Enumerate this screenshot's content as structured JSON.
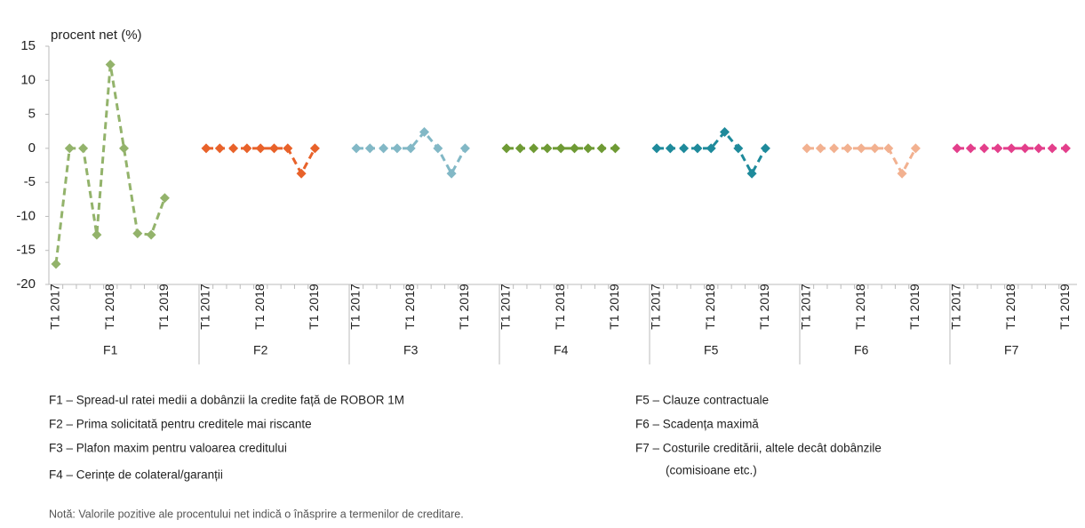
{
  "chart_data": {
    "type": "line",
    "y_label": "procent net (%)",
    "ylim": [
      -20,
      15
    ],
    "yticks": [
      -20,
      -15,
      -10,
      -5,
      0,
      5,
      10,
      15
    ],
    "groups": [
      {
        "name": "F1",
        "color": "#93b36b",
        "categories": [
          "T1 2017",
          null,
          null,
          null,
          "T1 2018",
          null,
          null,
          null,
          "T1 2019"
        ],
        "values": [
          -17,
          0,
          0,
          -12.7,
          12.3,
          0,
          -12.5,
          -12.7,
          -7.3
        ]
      },
      {
        "name": "F2",
        "color": "#e8622a",
        "categories": [
          "T1 2017",
          null,
          null,
          null,
          "T1 2018",
          null,
          null,
          null,
          "T1 2019"
        ],
        "values": [
          0,
          0,
          0,
          0,
          0,
          0,
          0,
          -3.7,
          0
        ]
      },
      {
        "name": "F3",
        "color": "#82b8c6",
        "categories": [
          "T1 2017",
          null,
          null,
          null,
          "T1 2018",
          null,
          null,
          null,
          "T1 2019"
        ],
        "values": [
          0,
          0,
          0,
          0,
          0,
          2.4,
          0,
          -3.7,
          0
        ]
      },
      {
        "name": "F4",
        "color": "#6e9a34",
        "categories": [
          "T1 2017",
          null,
          null,
          null,
          "T1 2018",
          null,
          null,
          null,
          "T1 2019"
        ],
        "values": [
          0,
          0,
          0,
          0,
          0,
          0,
          0,
          0,
          0
        ]
      },
      {
        "name": "F5",
        "color": "#1e8a9b",
        "categories": [
          "T1 2017",
          null,
          null,
          null,
          "T1 2018",
          null,
          null,
          null,
          "T1 2019"
        ],
        "values": [
          0,
          0,
          0,
          0,
          0,
          2.4,
          0,
          -3.7,
          0
        ]
      },
      {
        "name": "F6",
        "color": "#f2b190",
        "categories": [
          "T1 2017",
          null,
          null,
          null,
          "T1 2018",
          null,
          null,
          null,
          "T1 2019"
        ],
        "values": [
          0,
          0,
          0,
          0,
          0,
          0,
          0,
          -3.7,
          0
        ]
      },
      {
        "name": "F7",
        "color": "#e33f8b",
        "categories": [
          "T1 2017",
          null,
          null,
          null,
          "T1 2018",
          null,
          null,
          null,
          "T1 2019"
        ],
        "values": [
          0,
          0,
          0,
          0,
          0,
          0,
          0,
          0,
          0
        ]
      }
    ],
    "legend": [
      [
        "F1 – Spread-ul ratei medii a dobânzii  la credite față de ROBOR 1M"
      ],
      [
        "F2 – Prima solicitată pentru creditele  mai riscante"
      ],
      [
        "F3 – Plafon maxim pentru valoarea creditului"
      ],
      [
        "F4 – Cerințe de colateral/garanții"
      ],
      [
        "F5 – Clauze contractuale"
      ],
      [
        "F6 – Scadența maximă"
      ],
      [
        "F7 – Costurile creditării, altele decât  dobânzile",
        "(comisioane etc.)"
      ]
    ],
    "note": "Notă: Valorile pozitive ale procentului net indică o înăsprire a termenilor de creditare."
  }
}
